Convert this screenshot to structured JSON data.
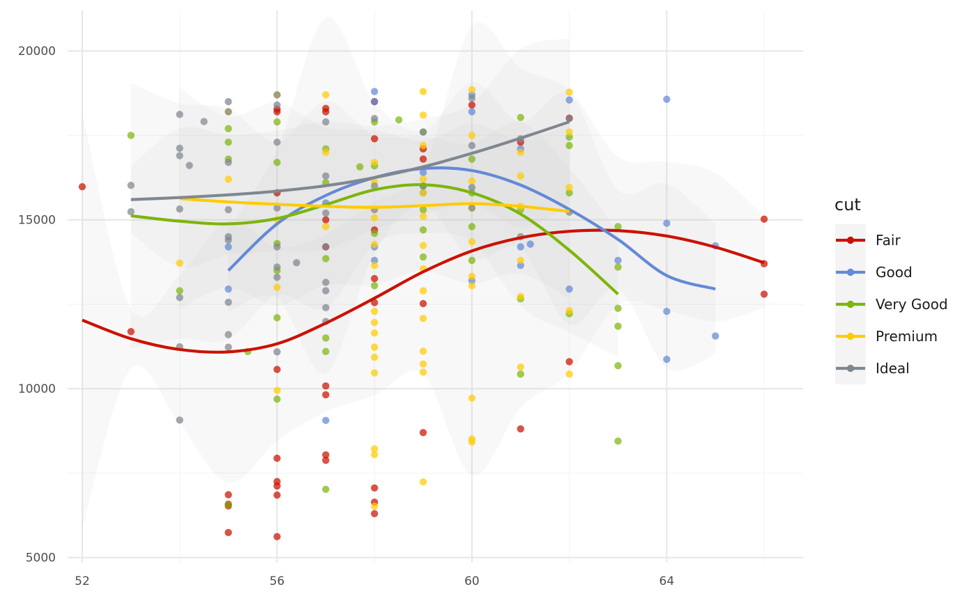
{
  "chart_data": {
    "type": "scatter",
    "title": "",
    "xlabel": "",
    "ylabel": "",
    "xlim": [
      51.7,
      66.8
    ],
    "ylim": [
      4850,
      21200
    ],
    "x_ticks": [
      52,
      56,
      60,
      64
    ],
    "x_tick_labels": [
      "52",
      "56",
      "60",
      "64"
    ],
    "y_ticks": [
      5000,
      10000,
      15000,
      20000
    ],
    "y_tick_labels": [
      "5000",
      "10000",
      "15000",
      "20000"
    ],
    "grid": true,
    "legend": {
      "title": "cut",
      "position": "right"
    },
    "series": [
      {
        "name": "Fair",
        "color": "#CC1100",
        "points": [
          [
            52,
            15980
          ],
          [
            53,
            11690
          ],
          [
            55,
            5740
          ],
          [
            55,
            6530
          ],
          [
            55,
            6860
          ],
          [
            55,
            6580
          ],
          [
            56,
            5620
          ],
          [
            56,
            6850
          ],
          [
            56,
            7120
          ],
          [
            56,
            7250
          ],
          [
            56,
            7940
          ],
          [
            56,
            10570
          ],
          [
            56,
            15800
          ],
          [
            56,
            18200
          ],
          [
            56,
            18280
          ],
          [
            57,
            7880
          ],
          [
            57,
            8040
          ],
          [
            57,
            9820
          ],
          [
            57,
            10080
          ],
          [
            57,
            14200
          ],
          [
            57,
            15000
          ],
          [
            57,
            18200
          ],
          [
            57,
            18300
          ],
          [
            58,
            6300
          ],
          [
            58,
            6640
          ],
          [
            58,
            7060
          ],
          [
            58,
            12550
          ],
          [
            58,
            13260
          ],
          [
            58,
            14700
          ],
          [
            58,
            17400
          ],
          [
            58,
            18500
          ],
          [
            59,
            8700
          ],
          [
            59,
            12520
          ],
          [
            59,
            16800
          ],
          [
            59,
            17100
          ],
          [
            60,
            18400
          ],
          [
            61,
            8810
          ],
          [
            61,
            17300
          ],
          [
            62,
            10800
          ],
          [
            62,
            18010
          ],
          [
            66,
            12800
          ],
          [
            66,
            13700
          ],
          [
            66,
            15020
          ]
        ],
        "smooth": [
          [
            52,
            12030
          ],
          [
            53,
            11480
          ],
          [
            54,
            11160
          ],
          [
            55,
            11090
          ],
          [
            56,
            11330
          ],
          [
            57,
            11940
          ],
          [
            58,
            12680
          ],
          [
            59,
            13460
          ],
          [
            60,
            14080
          ],
          [
            61,
            14470
          ],
          [
            62,
            14660
          ],
          [
            63,
            14680
          ],
          [
            64,
            14520
          ],
          [
            65,
            14190
          ],
          [
            66,
            13730
          ]
        ]
      },
      {
        "name": "Good",
        "color": "#6489D6",
        "points": [
          [
            55,
            12950
          ],
          [
            55,
            14200
          ],
          [
            57,
            9060
          ],
          [
            57,
            15500
          ],
          [
            58,
            13800
          ],
          [
            58,
            14200
          ],
          [
            58,
            18500
          ],
          [
            58,
            18800
          ],
          [
            59,
            15800
          ],
          [
            59,
            16400
          ],
          [
            60,
            13200
          ],
          [
            60,
            18200
          ],
          [
            60,
            18700
          ],
          [
            61,
            13650
          ],
          [
            61,
            14200
          ],
          [
            61,
            17100
          ],
          [
            61.2,
            14280
          ],
          [
            62,
            12950
          ],
          [
            62,
            18550
          ],
          [
            63,
            13800
          ],
          [
            64,
            10870
          ],
          [
            64,
            12290
          ],
          [
            64,
            14900
          ],
          [
            64,
            18570
          ],
          [
            65,
            11560
          ],
          [
            65,
            14230
          ]
        ],
        "smooth": [
          [
            55,
            13500
          ],
          [
            56,
            14880
          ],
          [
            57,
            15720
          ],
          [
            58,
            16250
          ],
          [
            59,
            16520
          ],
          [
            60,
            16460
          ],
          [
            61,
            16030
          ],
          [
            62,
            15310
          ],
          [
            63,
            14420
          ],
          [
            64,
            13350
          ],
          [
            65,
            12950
          ]
        ]
      },
      {
        "name": "Very Good",
        "color": "#7DB50C",
        "points": [
          [
            53,
            17500
          ],
          [
            54,
            12900
          ],
          [
            55,
            6560
          ],
          [
            55,
            16800
          ],
          [
            55,
            17300
          ],
          [
            55,
            17700
          ],
          [
            55.4,
            11100
          ],
          [
            56,
            9690
          ],
          [
            56,
            12100
          ],
          [
            56,
            13500
          ],
          [
            56,
            14300
          ],
          [
            56,
            16700
          ],
          [
            56,
            17900
          ],
          [
            57,
            7020
          ],
          [
            57,
            11100
          ],
          [
            57,
            11500
          ],
          [
            57,
            13850
          ],
          [
            57,
            16100
          ],
          [
            57,
            17100
          ],
          [
            57.7,
            16570
          ],
          [
            58,
            13050
          ],
          [
            58,
            14600
          ],
          [
            58,
            16600
          ],
          [
            58,
            17900
          ],
          [
            58.5,
            17960
          ],
          [
            59,
            13900
          ],
          [
            59,
            14700
          ],
          [
            59,
            15300
          ],
          [
            59,
            16000
          ],
          [
            59,
            17600
          ],
          [
            60,
            13800
          ],
          [
            60,
            14800
          ],
          [
            60,
            15800
          ],
          [
            60,
            16800
          ],
          [
            61,
            10430
          ],
          [
            61,
            12660
          ],
          [
            61,
            15300
          ],
          [
            61,
            18030
          ],
          [
            62,
            12220
          ],
          [
            62,
            15800
          ],
          [
            62,
            17200
          ],
          [
            62,
            17450
          ],
          [
            63,
            8450
          ],
          [
            63,
            10680
          ],
          [
            63,
            11850
          ],
          [
            63,
            12380
          ],
          [
            63,
            13600
          ],
          [
            63,
            14800
          ]
        ],
        "smooth": [
          [
            53,
            15120
          ],
          [
            54,
            14960
          ],
          [
            55,
            14880
          ],
          [
            56,
            15040
          ],
          [
            57,
            15450
          ],
          [
            58,
            15890
          ],
          [
            59,
            16040
          ],
          [
            60,
            15800
          ],
          [
            61,
            15170
          ],
          [
            62,
            14100
          ],
          [
            63,
            12800
          ]
        ]
      },
      {
        "name": "Premium",
        "color": "#FFCC00",
        "points": [
          [
            54,
            13720
          ],
          [
            55,
            16200
          ],
          [
            55,
            18200
          ],
          [
            56,
            9950
          ],
          [
            56,
            13000
          ],
          [
            56,
            15000
          ],
          [
            56,
            18700
          ],
          [
            57,
            14800
          ],
          [
            57,
            17000
          ],
          [
            57,
            18700
          ],
          [
            58,
            6520
          ],
          [
            58,
            8050
          ],
          [
            58,
            8220
          ],
          [
            58,
            10470
          ],
          [
            58,
            10930
          ],
          [
            58,
            11230
          ],
          [
            58,
            11650
          ],
          [
            58,
            11960
          ],
          [
            58,
            12290
          ],
          [
            58,
            13650
          ],
          [
            58,
            14270
          ],
          [
            58,
            15060
          ],
          [
            58,
            16120
          ],
          [
            58,
            16700
          ],
          [
            59,
            7240
          ],
          [
            59,
            10490
          ],
          [
            59,
            10730
          ],
          [
            59,
            11110
          ],
          [
            59,
            12080
          ],
          [
            59,
            12900
          ],
          [
            59,
            13550
          ],
          [
            59,
            14240
          ],
          [
            59,
            15100
          ],
          [
            59,
            15800
          ],
          [
            59,
            16200
          ],
          [
            59,
            17200
          ],
          [
            59,
            18100
          ],
          [
            59,
            18800
          ],
          [
            60,
            8420
          ],
          [
            60,
            8510
          ],
          [
            60,
            9720
          ],
          [
            60,
            13050
          ],
          [
            60,
            13330
          ],
          [
            60,
            14350
          ],
          [
            60,
            15350
          ],
          [
            60,
            16150
          ],
          [
            60,
            17500
          ],
          [
            60,
            18850
          ],
          [
            61,
            10640
          ],
          [
            61,
            12730
          ],
          [
            61,
            13800
          ],
          [
            61,
            15400
          ],
          [
            61,
            16300
          ],
          [
            61,
            17000
          ],
          [
            62,
            10430
          ],
          [
            62,
            12310
          ],
          [
            62,
            15960
          ],
          [
            62,
            17600
          ],
          [
            62,
            18780
          ]
        ],
        "smooth": [
          [
            54,
            15630
          ],
          [
            55,
            15530
          ],
          [
            56,
            15460
          ],
          [
            57,
            15400
          ],
          [
            58,
            15370
          ],
          [
            59,
            15420
          ],
          [
            60,
            15480
          ],
          [
            61,
            15400
          ],
          [
            62,
            15250
          ]
        ]
      },
      {
        "name": "Ideal",
        "color": "#7F878F",
        "points": [
          [
            53,
            15240
          ],
          [
            53,
            16020
          ],
          [
            54,
            9070
          ],
          [
            54,
            11240
          ],
          [
            54,
            12700
          ],
          [
            54,
            15320
          ],
          [
            54,
            16900
          ],
          [
            54,
            17120
          ],
          [
            54,
            18120
          ],
          [
            54.2,
            16610
          ],
          [
            54.5,
            17910
          ],
          [
            55,
            11230
          ],
          [
            55,
            11600
          ],
          [
            55,
            12560
          ],
          [
            55,
            14400
          ],
          [
            55,
            14500
          ],
          [
            55,
            15300
          ],
          [
            55,
            16700
          ],
          [
            55,
            18200
          ],
          [
            55,
            18500
          ],
          [
            56,
            11090
          ],
          [
            56,
            13300
          ],
          [
            56,
            13600
          ],
          [
            56,
            14200
          ],
          [
            56,
            15350
          ],
          [
            56,
            17300
          ],
          [
            56,
            18400
          ],
          [
            56,
            18700
          ],
          [
            56.4,
            13730
          ],
          [
            57,
            11990
          ],
          [
            57,
            12400
          ],
          [
            57,
            12900
          ],
          [
            57,
            13150
          ],
          [
            57,
            14200
          ],
          [
            57,
            15200
          ],
          [
            57,
            16300
          ],
          [
            57,
            17900
          ],
          [
            58,
            15300
          ],
          [
            58,
            16000
          ],
          [
            58,
            18000
          ],
          [
            59,
            16000
          ],
          [
            59,
            17600
          ],
          [
            60,
            15350
          ],
          [
            60,
            15960
          ],
          [
            60,
            17200
          ],
          [
            60,
            18600
          ],
          [
            61,
            14500
          ],
          [
            61,
            17400
          ],
          [
            62,
            15230
          ],
          [
            62,
            18000
          ]
        ],
        "smooth": [
          [
            53,
            15600
          ],
          [
            54,
            15660
          ],
          [
            55,
            15740
          ],
          [
            56,
            15850
          ],
          [
            57,
            16010
          ],
          [
            58,
            16250
          ],
          [
            59,
            16570
          ],
          [
            60,
            16970
          ],
          [
            61,
            17420
          ],
          [
            62,
            17900
          ]
        ]
      }
    ]
  }
}
